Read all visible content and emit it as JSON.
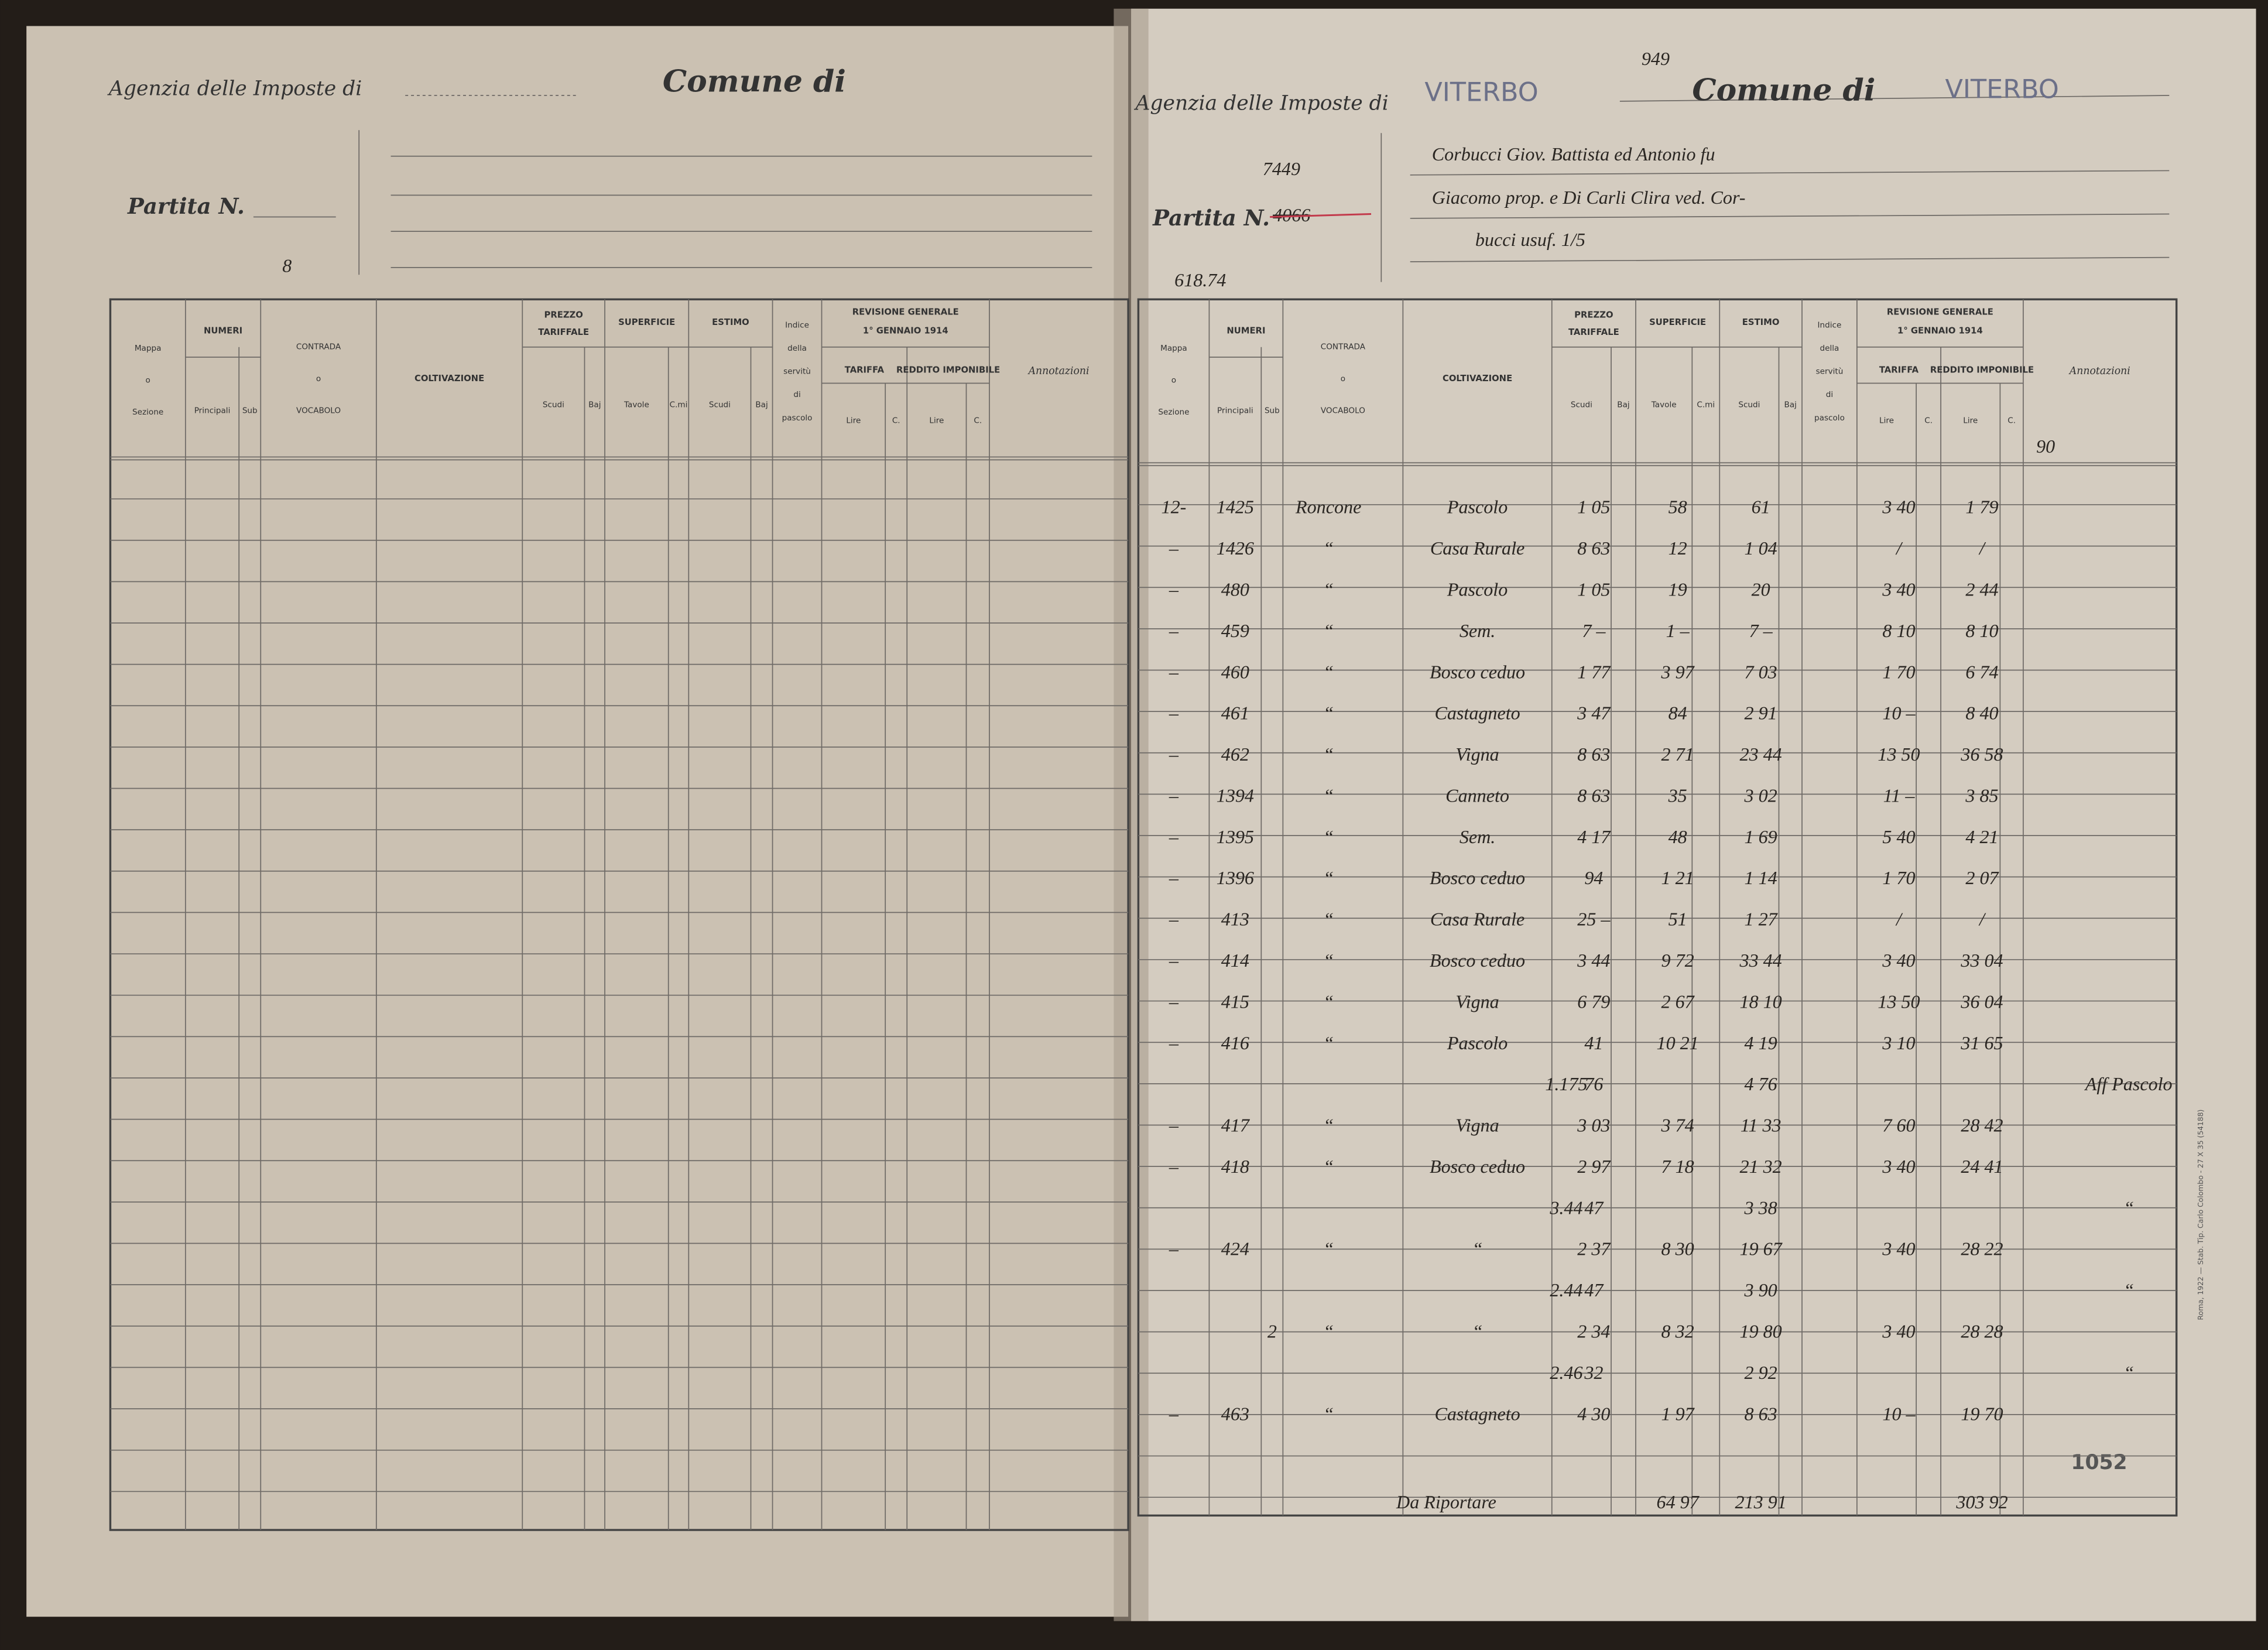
{
  "table_header": {
    "mappa": "Mappa",
    "mappa_o": "o",
    "sezione": "Sezione",
    "numeri": "NUMERI",
    "principali": "Principali",
    "sub": "Sub",
    "contrada": "CONTRADA",
    "contrada_o": "o",
    "vocabolo": "VOCABOLO",
    "coltivazione": "COLTIVAZIONE",
    "prezzo_tariffale": [
      "PREZZO",
      "TARIFFALE"
    ],
    "scudi": "Scudi",
    "baj": "Baj",
    "superficie": "SUPERFICIE",
    "tavole": "Tavole",
    "cmi": "C.mi",
    "estimo": "ESTIMO",
    "indice": [
      "Indice",
      "della",
      "servitù",
      "di",
      "pascolo"
    ],
    "revisione": [
      "REVISIONE GENERALE",
      "1° GENNAIO 1914"
    ],
    "tariffa": "TARIFFA",
    "reddito": "REDDITO IMPONIBILE",
    "lire": "Lire",
    "c": "C.",
    "annotazioni": "Annotazioni"
  },
  "left_page": {
    "agency_label": "Agenzia delle Imposte di",
    "comune_label": "Comune di",
    "partita_label": "Partita N.",
    "pencil_note": "8"
  },
  "right_page": {
    "agency_label": "Agenzia delle Imposte di",
    "agency_value": "VITERBO",
    "stamp_number": "949",
    "comune_label": "Comune di",
    "comune_value": "VITERBO",
    "partita_label": "Partita N.",
    "partita_number": "7449",
    "partita_crossed": "4066",
    "owner": [
      "Corbucci Giov. Battista ed Antonio fu",
      "Giacomo prop. e Di Carli Clira ved. Cor-",
      "bucci usuf. 1/5"
    ],
    "pencil_note": "618.74",
    "annot_note": "90",
    "rows": [
      {
        "mappa": "12-",
        "principali": "1425",
        "contrada": "Roncone",
        "coltivazione": "Pascolo",
        "prezzo": "1 05",
        "superficie": "58",
        "estimo": "61",
        "tariffa": "3 40",
        "reddito": "1 79"
      },
      {
        "mappa": "–",
        "principali": "1426",
        "contrada": "“",
        "coltivazione": "Casa Rurale",
        "prezzo": "8 63",
        "superficie": "12",
        "estimo": "1 04",
        "tariffa": "/",
        "reddito": "/"
      },
      {
        "mappa": "–",
        "principali": "480",
        "contrada": "“",
        "coltivazione": "Pascolo",
        "prezzo": "1 05",
        "superficie": "19",
        "estimo": "20",
        "tariffa": "3 40",
        "reddito": "2 44"
      },
      {
        "mappa": "–",
        "principali": "459",
        "contrada": "“",
        "coltivazione": "Sem.",
        "prezzo": "7 –",
        "superficie": "1 –",
        "estimo": "7 –",
        "tariffa": "8 10",
        "reddito": "8 10"
      },
      {
        "mappa": "–",
        "principali": "460",
        "contrada": "“",
        "coltivazione": "Bosco ceduo",
        "prezzo": "1 77",
        "superficie": "3 97",
        "estimo": "7 03",
        "tariffa": "1 70",
        "reddito": "6 74"
      },
      {
        "mappa": "–",
        "principali": "461",
        "contrada": "“",
        "coltivazione": "Castagneto",
        "prezzo": "3 47",
        "superficie": "84",
        "estimo": "2 91",
        "tariffa": "10 –",
        "reddito": "8 40"
      },
      {
        "mappa": "–",
        "principali": "462",
        "contrada": "“",
        "coltivazione": "Vigna",
        "prezzo": "8 63",
        "superficie": "2 71",
        "estimo": "23 44",
        "tariffa": "13 50",
        "reddito": "36 58"
      },
      {
        "mappa": "–",
        "principali": "1394",
        "contrada": "“",
        "coltivazione": "Canneto",
        "prezzo": "8 63",
        "superficie": "35",
        "estimo": "3 02",
        "tariffa": "11 –",
        "reddito": "3 85"
      },
      {
        "mappa": "–",
        "principali": "1395",
        "contrada": "“",
        "coltivazione": "Sem.",
        "prezzo": "4 17",
        "superficie": "48",
        "estimo": "1 69",
        "tariffa": "5 40",
        "reddito": "4 21"
      },
      {
        "mappa": "–",
        "principali": "1396",
        "contrada": "“",
        "coltivazione": "Bosco ceduo",
        "prezzo": "94",
        "superficie": "1 21",
        "estimo": "1 14",
        "tariffa": "1 70",
        "reddito": "2 07"
      },
      {
        "mappa": "–",
        "principali": "413",
        "contrada": "“",
        "coltivazione": "Casa Rurale",
        "prezzo": "25 –",
        "superficie": "51",
        "estimo": "1 27",
        "tariffa": "/",
        "reddito": "/"
      },
      {
        "mappa": "–",
        "principali": "414",
        "contrada": "“",
        "coltivazione": "Bosco ceduo",
        "prezzo": "3 44",
        "superficie": "9 72",
        "estimo": "33 44",
        "tariffa": "3 40",
        "reddito": "33 04"
      },
      {
        "mappa": "–",
        "principali": "415",
        "contrada": "“",
        "coltivazione": "Vigna",
        "prezzo": "6 79",
        "superficie": "2 67",
        "estimo": "18 10",
        "tariffa": "13 50",
        "reddito": "36 04"
      },
      {
        "mappa": "–",
        "principali": "416",
        "contrada": "“",
        "coltivazione": "Pascolo",
        "prezzo": "41",
        "superficie": "10 21",
        "estimo": "4 19",
        "tariffa": "3 10",
        "reddito": "31 65"
      },
      {
        "margin": "1.175",
        "prezzo": "76",
        "estimo": "4 76",
        "annotazioni": "Aff Pascolo"
      },
      {
        "mappa": "–",
        "principali": "417",
        "contrada": "“",
        "coltivazione": "Vigna",
        "prezzo": "3 03",
        "superficie": "3 74",
        "estimo": "11 33",
        "tariffa": "7 60",
        "reddito": "28 42"
      },
      {
        "mappa": "–",
        "principali": "418",
        "contrada": "“",
        "coltivazione": "Bosco ceduo",
        "prezzo": "2 97",
        "superficie": "7 18",
        "estimo": "21 32",
        "tariffa": "3 40",
        "reddito": "24 41"
      },
      {
        "margin": "3.44",
        "prezzo": "47",
        "estimo": "3 38",
        "annotazioni": "“"
      },
      {
        "mappa": "–",
        "principali": "424",
        "contrada": "“",
        "coltivazione": "“",
        "prezzo": "2 37",
        "superficie": "8 30",
        "estimo": "19 67",
        "tariffa": "3 40",
        "reddito": "28 22"
      },
      {
        "margin": "2.44",
        "prezzo": "47",
        "estimo": "3 90",
        "annotazioni": "“"
      },
      {
        "sub": "2",
        "contrada": "“",
        "coltivazione": "“",
        "prezzo": "2 34",
        "superficie": "8 32",
        "estimo": "19 80",
        "tariffa": "3 40",
        "reddito": "28 28"
      },
      {
        "margin": "2.46",
        "prezzo": "32",
        "estimo": "2 92",
        "annotazioni": "“"
      },
      {
        "mappa": "–",
        "principali": "463",
        "contrada": "“",
        "coltivazione": "Castagneto",
        "prezzo": "4 30",
        "superficie": "1 97",
        "estimo": "8 63",
        "tariffa": "10 –",
        "reddito": "19 70"
      }
    ],
    "total": {
      "label": "Da Riportare",
      "superficie": "64 97",
      "estimo": "213 91",
      "reddito": "303 92"
    },
    "stamp": "1052",
    "printer": "Roma, 1922 — Stab. Tip. Carlo Colombo - 27 X 35 (54188)"
  }
}
